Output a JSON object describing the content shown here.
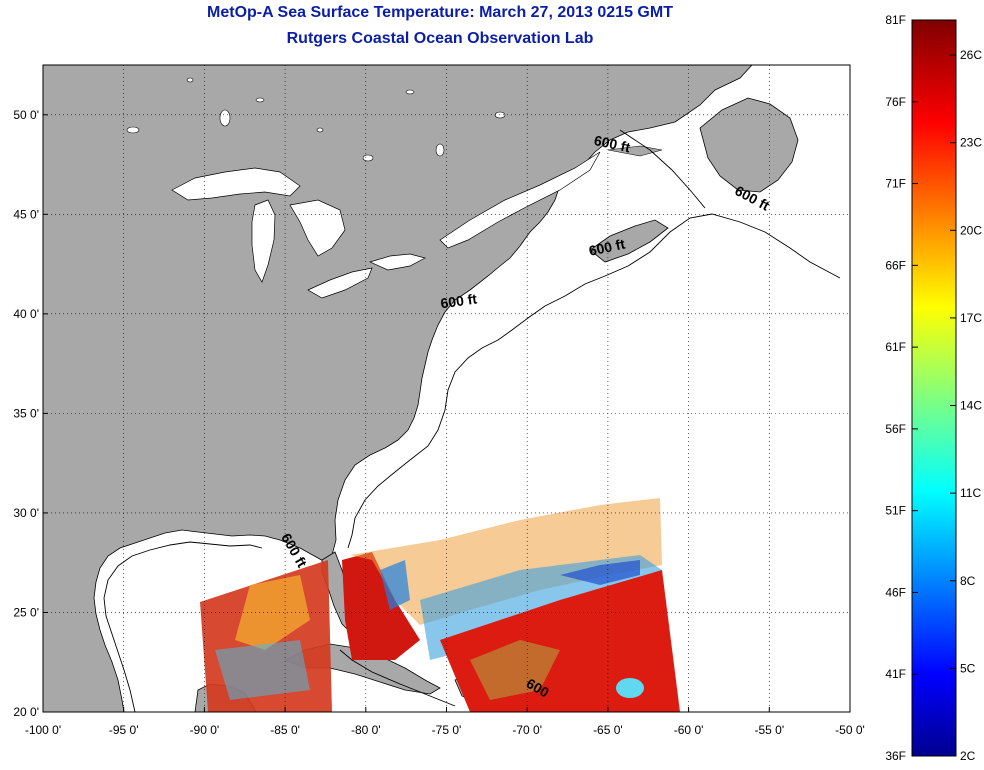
{
  "header": {
    "title": "MetOp-A Sea Surface Temperature:  March 27, 2013 0215 GMT",
    "subtitle": "Rutgers Coastal Ocean Observation Lab"
  },
  "map": {
    "lon_range": [
      -100,
      -50
    ],
    "lat_range": [
      20,
      52.5
    ],
    "lon_ticks": [
      "-100 0'",
      "-95 0'",
      "-90 0'",
      "-85 0'",
      "-80 0'",
      "-75 0'",
      "-70 0'",
      "-65 0'",
      "-60 0'",
      "-55 0'",
      "-50 0'"
    ],
    "lat_ticks": [
      "20 0'",
      "25 0'",
      "30 0'",
      "35 0'",
      "40 0'",
      "45 0'",
      "50 0'"
    ],
    "land_color": "#a8a8a8",
    "ocean_color": "#ffffff",
    "grid": "dotted",
    "contour_labels": [
      {
        "text": "600 ft",
        "lon": -64.8,
        "lat": 48.3,
        "rotate": 12
      },
      {
        "text": "600 ft",
        "lon": -56.2,
        "lat": 45.6,
        "rotate": 28
      },
      {
        "text": "600 ft",
        "lon": -65.0,
        "lat": 43.1,
        "rotate": -12
      },
      {
        "text": "600 ft",
        "lon": -74.2,
        "lat": 40.4,
        "rotate": -8
      },
      {
        "text": "600 ft",
        "lon": -84.7,
        "lat": 28.0,
        "rotate": 60
      },
      {
        "text": "600",
        "lon": -69.5,
        "lat": 21.0,
        "rotate": 30
      }
    ]
  },
  "colorbar": {
    "colormap": "jet",
    "fahrenheit_labels": [
      "81F",
      "76F",
      "71F",
      "66F",
      "61F",
      "56F",
      "51F",
      "46F",
      "41F",
      "36F"
    ],
    "celsius_labels": [
      "26C",
      "23C",
      "20C",
      "17C",
      "14C",
      "11C",
      "8C",
      "5C",
      "2C"
    ],
    "range_c": [
      2,
      27.2
    ]
  }
}
